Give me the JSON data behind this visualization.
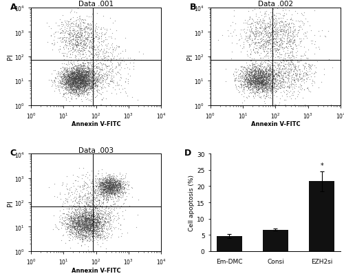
{
  "panel_titles": [
    "Data .001",
    "Data .002",
    "Data .003"
  ],
  "panel_labels": [
    "A",
    "B",
    "C",
    "D"
  ],
  "xlabel": "Annexin V-FITC",
  "ylabel_scatter": "PI",
  "ylabel_bar": "Cell apoptosis (%)",
  "xline_ABC": 80.0,
  "yline_A": 70.0,
  "yline_B": 70.0,
  "yline_C": 70.0,
  "bar_categories": [
    "Em-DMC",
    "Consi",
    "EZH2si"
  ],
  "bar_values": [
    4.6,
    6.6,
    21.5
  ],
  "bar_errors": [
    0.7,
    0.3,
    3.0
  ],
  "bar_color": "#111111",
  "ylim_bar": [
    0,
    30
  ],
  "yticks_bar": [
    0,
    5,
    10,
    15,
    20,
    25,
    30
  ],
  "scatter_xlim": [
    1.0,
    10000.0
  ],
  "scatter_ylim": [
    1.0,
    10000.0
  ],
  "background_color": "#ffffff",
  "dot_color": "#444444",
  "dot_size": 0.8,
  "n_dots_A": 4000,
  "n_dots_B": 3500,
  "n_dots_C": 4000,
  "seed_A": 42,
  "seed_B": 77,
  "seed_C": 55,
  "line_color": "#000000",
  "line_width": 0.7
}
